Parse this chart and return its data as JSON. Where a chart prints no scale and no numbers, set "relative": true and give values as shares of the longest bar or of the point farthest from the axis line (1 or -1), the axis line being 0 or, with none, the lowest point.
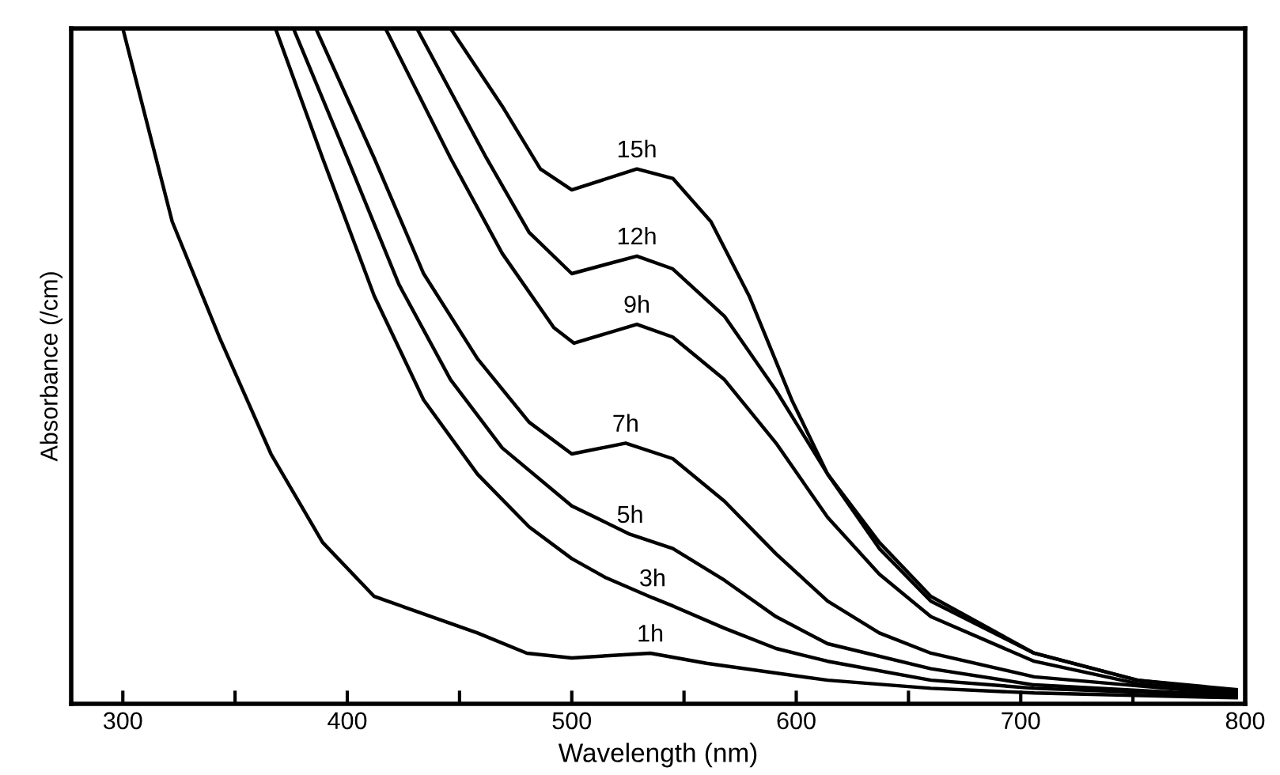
{
  "chart_data": {
    "type": "line",
    "relative": true,
    "xlabel": "Wavelength (nm)",
    "ylabel": "Absorbance (/cm)",
    "xlim": [
      277,
      800
    ],
    "xticks": [
      300,
      {
        "value": 350,
        "label": null
      },
      400,
      {
        "value": 450,
        "label": null
      },
      500,
      {
        "value": 550,
        "label": null
      },
      600,
      {
        "value": 650,
        "label": null
      },
      700,
      {
        "value": 750,
        "label": null
      },
      800
    ],
    "grid": false,
    "legend": false,
    "marker": "none",
    "line_style": "solid",
    "series": [
      {
        "name": "1h",
        "color": "#000000",
        "x": [
          300,
          322,
          343,
          366,
          389,
          412,
          458,
          480,
          500,
          535,
          560,
          614,
          660,
          706,
          796
        ],
        "values": [
          1.0,
          0.714,
          0.543,
          0.37,
          0.239,
          0.159,
          0.105,
          0.075,
          0.068,
          0.075,
          0.06,
          0.035,
          0.023,
          0.016,
          0.009
        ]
      },
      {
        "name": "3h",
        "color": "#000000",
        "x": [
          368,
          389,
          412,
          434,
          458,
          481,
          500,
          515,
          536,
          545,
          568,
          591,
          614,
          660,
          706,
          796
        ],
        "values": [
          1.0,
          0.808,
          0.604,
          0.45,
          0.34,
          0.262,
          0.215,
          0.187,
          0.157,
          0.145,
          0.112,
          0.082,
          0.063,
          0.035,
          0.023,
          0.012
        ]
      },
      {
        "name": "5h",
        "color": "#000000",
        "x": [
          376,
          400,
          423,
          446,
          469,
          500,
          526,
          545,
          568,
          591,
          614,
          660,
          706,
          796
        ],
        "values": [
          1.0,
          0.808,
          0.621,
          0.48,
          0.379,
          0.293,
          0.251,
          0.23,
          0.183,
          0.129,
          0.089,
          0.052,
          0.028,
          0.012
        ]
      },
      {
        "name": "7h",
        "color": "#000000",
        "x": [
          386,
          412,
          434,
          458,
          481,
          500,
          524,
          545,
          568,
          591,
          614,
          637,
          660,
          706,
          796
        ],
        "values": [
          1.0,
          0.808,
          0.637,
          0.511,
          0.417,
          0.37,
          0.386,
          0.363,
          0.3,
          0.222,
          0.152,
          0.105,
          0.075,
          0.04,
          0.014
        ]
      },
      {
        "name": "9h",
        "color": "#000000",
        "x": [
          417,
          446,
          469,
          492,
          501,
          529,
          545,
          568,
          591,
          614,
          637,
          660,
          706,
          752,
          796
        ],
        "values": [
          1.0,
          0.808,
          0.667,
          0.557,
          0.534,
          0.562,
          0.543,
          0.48,
          0.386,
          0.276,
          0.192,
          0.129,
          0.063,
          0.03,
          0.016
        ]
      },
      {
        "name": "12h",
        "color": "#000000",
        "x": [
          431,
          462,
          481,
          500,
          529,
          545,
          568,
          591,
          614,
          637,
          660,
          706,
          752,
          796
        ],
        "values": [
          1.0,
          0.808,
          0.698,
          0.637,
          0.663,
          0.644,
          0.574,
          0.464,
          0.34,
          0.23,
          0.152,
          0.075,
          0.035,
          0.019
        ]
      },
      {
        "name": "15h",
        "color": "#000000",
        "x": [
          446,
          469,
          486,
          500,
          529,
          545,
          562,
          579,
          598,
          614,
          637,
          660,
          706,
          752,
          796
        ],
        "values": [
          1.0,
          0.885,
          0.792,
          0.761,
          0.792,
          0.778,
          0.714,
          0.604,
          0.45,
          0.34,
          0.239,
          0.159,
          0.075,
          0.035,
          0.021
        ]
      }
    ]
  }
}
